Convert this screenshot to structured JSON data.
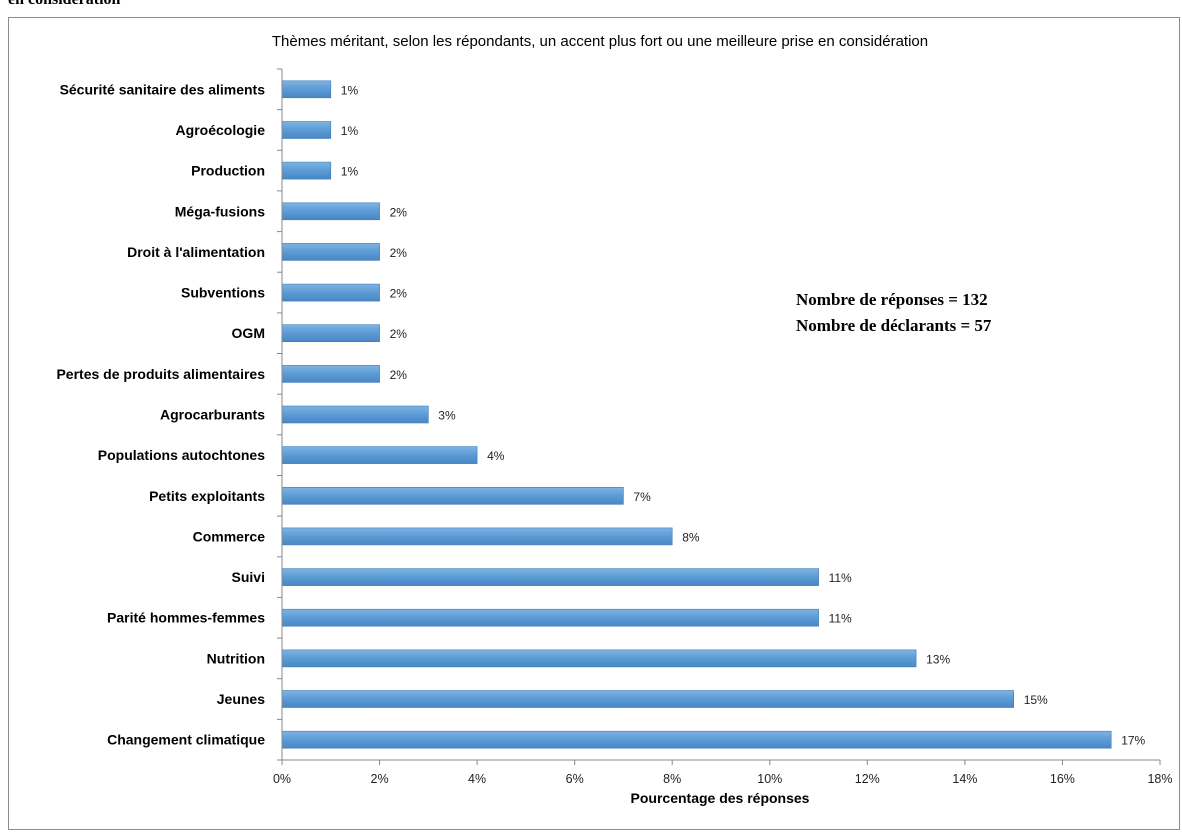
{
  "page": {
    "caption": "en considération"
  },
  "colors": {
    "bar": "#5b9bd5",
    "bar_edge": "#3d7cb8",
    "axis": "#888888"
  },
  "chart_data": {
    "type": "bar",
    "orientation": "horizontal",
    "title": "Thèmes méritant, selon les répondants, un accent plus fort ou une meilleure prise en considération",
    "xlabel": "Pourcentage des réponses",
    "ylabel": "",
    "xlim": [
      0,
      18
    ],
    "xticks": [
      "0%",
      "2%",
      "4%",
      "6%",
      "8%",
      "10%",
      "12%",
      "14%",
      "16%",
      "18%"
    ],
    "categories": [
      "Sécurité sanitaire des aliments",
      "Agroécologie",
      "Production",
      "Méga-fusions",
      "Droit à l'alimentation",
      "Subventions",
      "OGM",
      "Pertes de produits alimentaires",
      "Agrocarburants",
      "Populations autochtones",
      "Petits exploitants",
      "Commerce",
      "Suivi",
      "Parité hommes-femmes",
      "Nutrition",
      "Jeunes",
      "Changement climatique"
    ],
    "values": [
      1,
      1,
      1,
      2,
      2,
      2,
      2,
      2,
      3,
      4,
      7,
      8,
      11,
      11,
      13,
      15,
      17
    ],
    "value_labels": [
      "1%",
      "1%",
      "1%",
      "2%",
      "2%",
      "2%",
      "2%",
      "2%",
      "3%",
      "4%",
      "7%",
      "8%",
      "11%",
      "11%",
      "13%",
      "15%",
      "17%"
    ],
    "annotations": [
      "Nombre de réponses = 132",
      "Nombre de déclarants = 57"
    ],
    "grid": false,
    "legend": "none"
  }
}
